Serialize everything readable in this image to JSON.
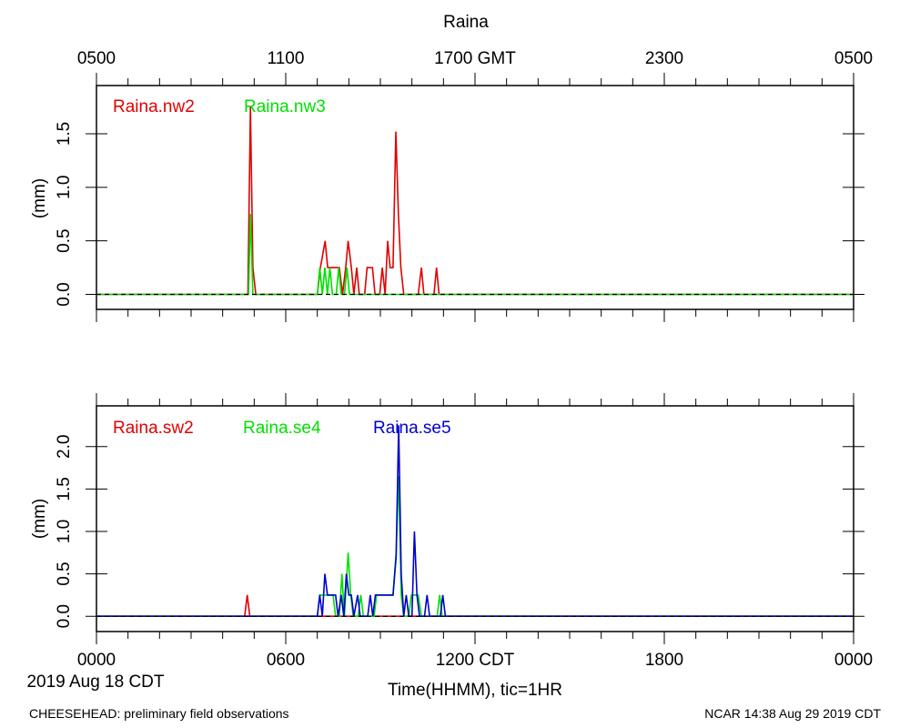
{
  "title": "Raina",
  "top_axis_labels": [
    "0500",
    "1100",
    "1700 GMT",
    "2300",
    "0500"
  ],
  "bottom_axis_labels": [
    "0000",
    "0600",
    "1200 CDT",
    "1800",
    "0000"
  ],
  "date_label": "2019 Aug 18 CDT",
  "xlabel": "Time(HHMM), tic=1HR",
  "footer_left": "CHEESEHEAD: preliminary field observations",
  "footer_right": "NCAR 14:38 Aug 29 2019 CDT",
  "chart_data": [
    {
      "type": "line",
      "x_unit": "hours since 0000 CDT",
      "xlim": [
        0,
        24
      ],
      "ylim": [
        -0.14,
        1.95
      ],
      "yticks": [
        0.0,
        0.5,
        1.0,
        1.5
      ],
      "ylabel": "(mm)",
      "baseline_dashed": true,
      "series": [
        {
          "name": "Raina.nw2",
          "color": "#e00000",
          "points": [
            [
              0,
              0
            ],
            [
              4.8,
              0
            ],
            [
              4.88,
              1.75
            ],
            [
              4.96,
              0.25
            ],
            [
              5.05,
              0
            ],
            [
              7.0,
              0
            ],
            [
              7.1,
              0.25
            ],
            [
              7.25,
              0.5
            ],
            [
              7.33,
              0.25
            ],
            [
              7.7,
              0.25
            ],
            [
              7.8,
              0
            ],
            [
              7.9,
              0.25
            ],
            [
              7.98,
              0.5
            ],
            [
              8.08,
              0.25
            ],
            [
              8.16,
              0
            ],
            [
              8.25,
              0.25
            ],
            [
              8.33,
              0
            ],
            [
              8.5,
              0
            ],
            [
              8.58,
              0.25
            ],
            [
              8.75,
              0.25
            ],
            [
              8.83,
              0
            ],
            [
              8.98,
              0
            ],
            [
              9.06,
              0.25
            ],
            [
              9.15,
              0
            ],
            [
              9.23,
              0.5
            ],
            [
              9.31,
              0.25
            ],
            [
              9.4,
              0.25
            ],
            [
              9.49,
              1.52
            ],
            [
              9.57,
              0.75
            ],
            [
              9.65,
              0.25
            ],
            [
              9.74,
              0
            ],
            [
              10.2,
              0
            ],
            [
              10.3,
              0.25
            ],
            [
              10.38,
              0
            ],
            [
              10.7,
              0
            ],
            [
              10.78,
              0.25
            ],
            [
              10.86,
              0
            ],
            [
              24,
              0
            ]
          ]
        },
        {
          "name": "Raina.nw3",
          "color": "#00e000",
          "points": [
            [
              0,
              0
            ],
            [
              4.82,
              0
            ],
            [
              4.88,
              0.75
            ],
            [
              4.96,
              0
            ],
            [
              7.0,
              0
            ],
            [
              7.08,
              0.25
            ],
            [
              7.16,
              0
            ],
            [
              7.24,
              0.25
            ],
            [
              7.32,
              0
            ],
            [
              7.4,
              0.25
            ],
            [
              7.48,
              0
            ],
            [
              7.6,
              0
            ],
            [
              7.68,
              0.25
            ],
            [
              7.76,
              0
            ],
            [
              7.86,
              0
            ],
            [
              7.94,
              0.25
            ],
            [
              8.02,
              0
            ],
            [
              24,
              0
            ]
          ]
        }
      ]
    },
    {
      "type": "line",
      "x_unit": "hours since 0000 CDT",
      "xlim": [
        0,
        24
      ],
      "ylim": [
        -0.18,
        2.48
      ],
      "yticks": [
        0.0,
        0.5,
        1.0,
        1.5,
        2.0
      ],
      "ylabel": "(mm)",
      "baseline_dashed": true,
      "series": [
        {
          "name": "Raina.sw2",
          "color": "#e00000",
          "points": [
            [
              0,
              0
            ],
            [
              4.7,
              0
            ],
            [
              4.78,
              0.25
            ],
            [
              4.86,
              0
            ],
            [
              24,
              0
            ]
          ]
        },
        {
          "name": "Raina.se4",
          "color": "#00e000",
          "points": [
            [
              0,
              0
            ],
            [
              7.0,
              0
            ],
            [
              7.08,
              0.25
            ],
            [
              7.5,
              0.25
            ],
            [
              7.58,
              0
            ],
            [
              7.7,
              0
            ],
            [
              7.78,
              0.5
            ],
            [
              7.86,
              0
            ],
            [
              7.98,
              0.75
            ],
            [
              8.06,
              0.25
            ],
            [
              8.14,
              0
            ],
            [
              8.3,
              0
            ],
            [
              8.38,
              0.25
            ],
            [
              8.46,
              0
            ],
            [
              8.8,
              0
            ],
            [
              8.88,
              0.25
            ],
            [
              9.3,
              0.25
            ],
            [
              9.4,
              0.25
            ],
            [
              9.5,
              0.75
            ],
            [
              9.58,
              1.65
            ],
            [
              9.66,
              0.25
            ],
            [
              9.74,
              0
            ],
            [
              9.9,
              0
            ],
            [
              9.98,
              0.25
            ],
            [
              10.2,
              0.25
            ],
            [
              10.3,
              0
            ],
            [
              10.8,
              0
            ],
            [
              10.88,
              0.25
            ],
            [
              10.96,
              0
            ],
            [
              24,
              0
            ]
          ]
        },
        {
          "name": "Raina.se5",
          "color": "#0000d0",
          "points": [
            [
              0,
              0
            ],
            [
              7.0,
              0
            ],
            [
              7.08,
              0.25
            ],
            [
              7.16,
              0
            ],
            [
              7.24,
              0.5
            ],
            [
              7.32,
              0.25
            ],
            [
              7.58,
              0.25
            ],
            [
              7.66,
              0
            ],
            [
              7.76,
              0.25
            ],
            [
              7.84,
              0
            ],
            [
              7.92,
              0.5
            ],
            [
              8.0,
              0.25
            ],
            [
              8.08,
              0.25
            ],
            [
              8.16,
              0
            ],
            [
              8.28,
              0.25
            ],
            [
              8.36,
              0
            ],
            [
              8.6,
              0
            ],
            [
              8.68,
              0.25
            ],
            [
              8.76,
              0
            ],
            [
              8.84,
              0.25
            ],
            [
              9.4,
              0.25
            ],
            [
              9.5,
              0.7
            ],
            [
              9.58,
              2.25
            ],
            [
              9.66,
              0.5
            ],
            [
              9.74,
              0
            ],
            [
              9.82,
              0.25
            ],
            [
              9.9,
              0
            ],
            [
              10.0,
              0
            ],
            [
              10.08,
              1.0
            ],
            [
              10.16,
              0.25
            ],
            [
              10.24,
              0
            ],
            [
              10.4,
              0
            ],
            [
              10.48,
              0.25
            ],
            [
              10.56,
              0
            ],
            [
              10.9,
              0
            ],
            [
              10.98,
              0.25
            ],
            [
              11.06,
              0
            ],
            [
              24,
              0
            ]
          ]
        }
      ]
    }
  ]
}
